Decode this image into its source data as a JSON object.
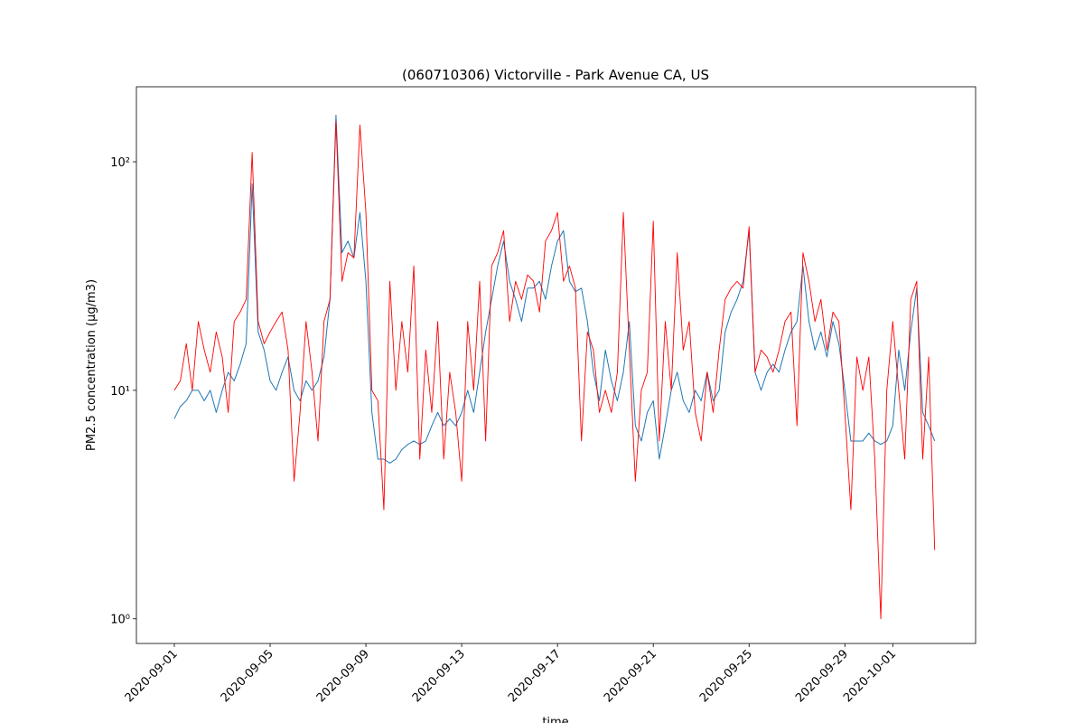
{
  "chart_data": {
    "type": "line",
    "title": "(060710306) Victorville - Park Avenue CA, US",
    "xlabel": "time",
    "ylabel": "PM2.5 concentration (µg/m3)",
    "log_y": true,
    "xlim": [
      "2020-08-30 10:00",
      "2020-10-04 11:00"
    ],
    "ylim": [
      0.78,
      213
    ],
    "xticks": [
      "2020-09-01",
      "2020-09-05",
      "2020-09-09",
      "2020-09-13",
      "2020-09-17",
      "2020-09-21",
      "2020-09-25",
      "2020-09-29",
      "2020-10-01"
    ],
    "yticks": [
      {
        "value": 1,
        "label": "10⁰"
      },
      {
        "value": 10,
        "label": "10¹"
      },
      {
        "value": 100,
        "label": "10²"
      }
    ],
    "x": [
      "2020-09-01 00:00",
      "2020-09-01 06:00",
      "2020-09-01 12:00",
      "2020-09-01 18:00",
      "2020-09-02 00:00",
      "2020-09-02 06:00",
      "2020-09-02 12:00",
      "2020-09-02 18:00",
      "2020-09-03 00:00",
      "2020-09-03 06:00",
      "2020-09-03 12:00",
      "2020-09-03 18:00",
      "2020-09-04 00:00",
      "2020-09-04 06:00",
      "2020-09-04 12:00",
      "2020-09-04 18:00",
      "2020-09-05 00:00",
      "2020-09-05 06:00",
      "2020-09-05 12:00",
      "2020-09-05 18:00",
      "2020-09-06 00:00",
      "2020-09-06 06:00",
      "2020-09-06 12:00",
      "2020-09-06 18:00",
      "2020-09-07 00:00",
      "2020-09-07 06:00",
      "2020-09-07 12:00",
      "2020-09-07 18:00",
      "2020-09-08 00:00",
      "2020-09-08 06:00",
      "2020-09-08 12:00",
      "2020-09-08 18:00",
      "2020-09-09 00:00",
      "2020-09-09 06:00",
      "2020-09-09 12:00",
      "2020-09-09 18:00",
      "2020-09-10 00:00",
      "2020-09-10 06:00",
      "2020-09-10 12:00",
      "2020-09-10 18:00",
      "2020-09-11 00:00",
      "2020-09-11 06:00",
      "2020-09-11 12:00",
      "2020-09-11 18:00",
      "2020-09-12 00:00",
      "2020-09-12 06:00",
      "2020-09-12 12:00",
      "2020-09-12 18:00",
      "2020-09-13 00:00",
      "2020-09-13 06:00",
      "2020-09-13 12:00",
      "2020-09-13 18:00",
      "2020-09-14 00:00",
      "2020-09-14 06:00",
      "2020-09-14 12:00",
      "2020-09-14 18:00",
      "2020-09-15 00:00",
      "2020-09-15 06:00",
      "2020-09-15 12:00",
      "2020-09-15 18:00",
      "2020-09-16 00:00",
      "2020-09-16 06:00",
      "2020-09-16 12:00",
      "2020-09-16 18:00",
      "2020-09-17 00:00",
      "2020-09-17 06:00",
      "2020-09-17 12:00",
      "2020-09-17 18:00",
      "2020-09-18 00:00",
      "2020-09-18 06:00",
      "2020-09-18 12:00",
      "2020-09-18 18:00",
      "2020-09-19 00:00",
      "2020-09-19 06:00",
      "2020-09-19 12:00",
      "2020-09-19 18:00",
      "2020-09-20 00:00",
      "2020-09-20 06:00",
      "2020-09-20 12:00",
      "2020-09-20 18:00",
      "2020-09-21 00:00",
      "2020-09-21 06:00",
      "2020-09-21 12:00",
      "2020-09-21 18:00",
      "2020-09-22 00:00",
      "2020-09-22 06:00",
      "2020-09-22 12:00",
      "2020-09-22 18:00",
      "2020-09-23 00:00",
      "2020-09-23 06:00",
      "2020-09-23 12:00",
      "2020-09-23 18:00",
      "2020-09-24 00:00",
      "2020-09-24 06:00",
      "2020-09-24 12:00",
      "2020-09-24 18:00",
      "2020-09-25 00:00",
      "2020-09-25 06:00",
      "2020-09-25 12:00",
      "2020-09-25 18:00",
      "2020-09-26 00:00",
      "2020-09-26 06:00",
      "2020-09-26 12:00",
      "2020-09-26 18:00",
      "2020-09-27 00:00",
      "2020-09-27 06:00",
      "2020-09-27 12:00",
      "2020-09-27 18:00",
      "2020-09-28 00:00",
      "2020-09-28 06:00",
      "2020-09-28 12:00",
      "2020-09-28 18:00",
      "2020-09-29 00:00",
      "2020-09-29 06:00",
      "2020-09-29 12:00",
      "2020-09-29 18:00",
      "2020-09-30 00:00",
      "2020-09-30 06:00",
      "2020-09-30 12:00",
      "2020-09-30 18:00",
      "2020-10-01 00:00",
      "2020-10-01 06:00",
      "2020-10-01 12:00",
      "2020-10-01 18:00",
      "2020-10-02 00:00",
      "2020-10-02 06:00",
      "2020-10-02 12:00",
      "2020-10-02 18:00"
    ],
    "series": [
      {
        "color": "#1f77b4",
        "width": 1,
        "values": [
          7.5,
          8.5,
          9,
          10,
          10,
          9,
          10,
          8,
          10,
          12,
          11,
          13,
          16,
          80,
          18,
          15,
          11,
          10,
          12,
          14,
          10,
          9,
          11,
          10,
          11,
          14,
          25,
          160,
          40,
          45,
          38,
          60,
          30,
          8,
          5,
          5,
          4.8,
          5,
          5.5,
          5.8,
          6,
          5.8,
          6,
          7,
          8,
          7,
          7.5,
          7,
          8,
          10,
          8,
          12,
          18,
          25,
          35,
          45,
          30,
          25,
          20,
          28,
          28,
          30,
          25,
          35,
          45,
          50,
          30,
          27,
          28,
          20,
          12,
          9,
          15,
          11,
          9,
          12,
          20,
          7,
          6,
          8,
          9,
          5,
          7,
          10,
          12,
          9,
          8,
          10,
          9,
          12,
          9,
          10,
          18,
          22,
          25,
          30,
          50,
          12,
          10,
          12,
          13,
          12,
          15,
          18,
          20,
          35,
          20,
          15,
          18,
          14,
          20,
          16,
          10,
          6,
          6,
          6,
          6.5,
          6,
          5.8,
          6,
          7,
          15,
          10,
          18,
          28,
          8,
          7,
          6
        ]
      },
      {
        "color": "#ff0000",
        "width": 0.9,
        "values": [
          10,
          11,
          16,
          10,
          20,
          15,
          12,
          18,
          14,
          8,
          20,
          22,
          25,
          110,
          20,
          16,
          18,
          20,
          22,
          15,
          4,
          8,
          20,
          12,
          6,
          20,
          25,
          150,
          30,
          40,
          38,
          145,
          60,
          10,
          9,
          3,
          30,
          10,
          20,
          12,
          35,
          5,
          15,
          8,
          20,
          5,
          12,
          8,
          4,
          20,
          10,
          30,
          6,
          35,
          40,
          50,
          20,
          30,
          25,
          32,
          30,
          22,
          45,
          50,
          60,
          30,
          35,
          28,
          6,
          18,
          15,
          8,
          10,
          8,
          12,
          60,
          15,
          4,
          10,
          12,
          55,
          6,
          20,
          10,
          40,
          15,
          20,
          8,
          6,
          12,
          8,
          15,
          25,
          28,
          30,
          28,
          52,
          12,
          15,
          14,
          12,
          15,
          20,
          22,
          7,
          40,
          30,
          20,
          25,
          15,
          22,
          20,
          8,
          3,
          14,
          10,
          14,
          5,
          1,
          10,
          20,
          10,
          5,
          25,
          30,
          5,
          14,
          2
        ]
      }
    ]
  }
}
